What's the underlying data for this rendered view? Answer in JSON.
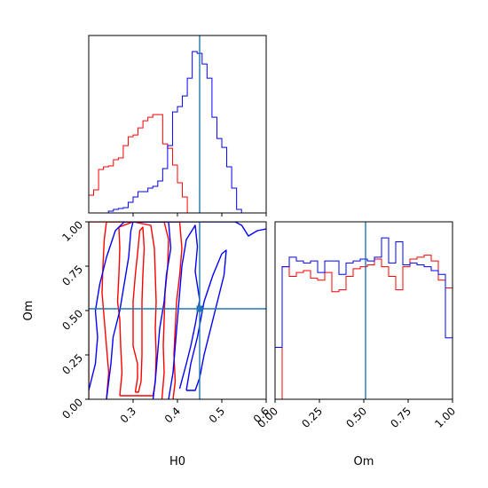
{
  "chart_data": [
    {
      "type": "histogram",
      "panel": "H0 marginal",
      "xlim": [
        0.2,
        0.6
      ],
      "x_ticks": [
        "0.3",
        "0.4",
        "0.5",
        "0.6"
      ],
      "truth_x": 0.45,
      "bin_edges": [
        0.2,
        0.2111,
        0.2222,
        0.2333,
        0.2444,
        0.2556,
        0.2667,
        0.2778,
        0.2889,
        0.3,
        0.3111,
        0.3222,
        0.3333,
        0.3444,
        0.3556,
        0.3667,
        0.3778,
        0.3889,
        0.4,
        0.4111,
        0.4222,
        0.4333,
        0.4444,
        0.4556,
        0.4667,
        0.4778,
        0.4889,
        0.5,
        0.5111,
        0.5222,
        0.5333,
        0.5444,
        0.5556,
        0.5667,
        0.5778,
        0.5889,
        0.6
      ],
      "series": [
        {
          "color": "#ff0000",
          "values": [
            20,
            26,
            49,
            52,
            53,
            60,
            62,
            76,
            86,
            88,
            96,
            104,
            108,
            111,
            111,
            78,
            73,
            54,
            34,
            18,
            0,
            0,
            0,
            0,
            0,
            0,
            0,
            0,
            0,
            0,
            0,
            0,
            0,
            0,
            0,
            0
          ]
        },
        {
          "color": "#0000ff",
          "values": [
            0,
            0,
            0,
            0,
            2,
            4,
            5,
            6,
            12,
            18,
            24,
            24,
            28,
            30,
            36,
            50,
            76,
            114,
            120,
            132,
            152,
            182,
            180,
            168,
            152,
            108,
            84,
            74,
            52,
            28,
            4,
            0,
            0,
            0,
            0,
            0
          ]
        }
      ]
    },
    {
      "type": "contour",
      "panel": "H0 vs Om",
      "xlabel": "H0",
      "ylabel": "Om",
      "xlim": [
        0.2,
        0.6
      ],
      "ylim": [
        0.0,
        1.0
      ],
      "x_ticks": [
        "0.3",
        "0.4",
        "0.5",
        "0.6"
      ],
      "y_ticks": [
        "0.00",
        "0.25",
        "0.50",
        "0.75",
        "1.00"
      ],
      "truth": [
        0.45,
        0.51
      ],
      "series": [
        {
          "color": "#ff0000",
          "contours": [
            [
              [
                0.305,
                0.04
              ],
              [
                0.31,
                0.12
              ],
              [
                0.31,
                0.2
              ],
              [
                0.3,
                0.3
              ],
              [
                0.3,
                0.45
              ],
              [
                0.3,
                0.55
              ],
              [
                0.305,
                0.7
              ],
              [
                0.31,
                0.82
              ],
              [
                0.315,
                0.95
              ],
              [
                0.322,
                0.97
              ],
              [
                0.325,
                0.85
              ],
              [
                0.322,
                0.7
              ],
              [
                0.32,
                0.55
              ],
              [
                0.32,
                0.4
              ],
              [
                0.32,
                0.25
              ],
              [
                0.318,
                0.1
              ],
              [
                0.312,
                0.04
              ],
              [
                0.305,
                0.04
              ]
            ],
            [
              [
                0.27,
                0.02
              ],
              [
                0.275,
                0.15
              ],
              [
                0.272,
                0.3
              ],
              [
                0.27,
                0.45
              ],
              [
                0.265,
                0.55
              ],
              [
                0.268,
                0.7
              ],
              [
                0.27,
                0.85
              ],
              [
                0.268,
                0.97
              ],
              [
                0.3,
                1.0
              ],
              [
                0.34,
                0.98
              ],
              [
                0.348,
                0.85
              ],
              [
                0.35,
                0.7
              ],
              [
                0.352,
                0.55
              ],
              [
                0.35,
                0.4
              ],
              [
                0.352,
                0.25
              ],
              [
                0.35,
                0.1
              ],
              [
                0.345,
                0.02
              ],
              [
                0.27,
                0.02
              ]
            ],
            [
              [
                0.24,
                0.0
              ],
              [
                0.245,
                0.15
              ],
              [
                0.24,
                0.3
              ],
              [
                0.235,
                0.45
              ],
              [
                0.23,
                0.6
              ],
              [
                0.232,
                0.75
              ],
              [
                0.235,
                0.9
              ],
              [
                0.24,
                1.0
              ],
              [
                0.37,
                1.0
              ],
              [
                0.38,
                0.9
              ],
              [
                0.378,
                0.75
              ],
              [
                0.372,
                0.6
              ],
              [
                0.37,
                0.45
              ],
              [
                0.368,
                0.3
              ],
              [
                0.37,
                0.15
              ],
              [
                0.365,
                0.0
              ]
            ],
            [
              [
                0.2,
                0.0
              ],
              [
                0.2,
                1.0
              ],
              [
                0.405,
                1.0
              ],
              [
                0.41,
                0.85
              ],
              [
                0.405,
                0.7
              ],
              [
                0.398,
                0.55
              ],
              [
                0.395,
                0.4
              ],
              [
                0.392,
                0.25
              ],
              [
                0.395,
                0.1
              ],
              [
                0.39,
                0.0
              ]
            ]
          ]
        },
        {
          "color": "#0000ff",
          "contours": [
            [
              [
                0.42,
                0.05
              ],
              [
                0.43,
                0.2
              ],
              [
                0.445,
                0.35
              ],
              [
                0.46,
                0.55
              ],
              [
                0.48,
                0.7
              ],
              [
                0.5,
                0.82
              ],
              [
                0.51,
                0.84
              ],
              [
                0.505,
                0.7
              ],
              [
                0.49,
                0.55
              ],
              [
                0.475,
                0.4
              ],
              [
                0.46,
                0.25
              ],
              [
                0.45,
                0.12
              ],
              [
                0.44,
                0.05
              ],
              [
                0.42,
                0.05
              ]
            ],
            [
              [
                0.38,
                0.0
              ],
              [
                0.39,
                0.15
              ],
              [
                0.395,
                0.3
              ],
              [
                0.4,
                0.45
              ],
              [
                0.405,
                0.6
              ],
              [
                0.41,
                0.75
              ],
              [
                0.42,
                0.9
              ],
              [
                0.44,
                0.98
              ],
              [
                0.445,
                0.86
              ],
              [
                0.44,
                0.72
              ],
              [
                0.45,
                0.56
              ],
              [
                0.44,
                0.42
              ],
              [
                0.43,
                0.3
              ],
              [
                0.42,
                0.2
              ],
              [
                0.405,
                0.06
              ]
            ],
            [
              [
                0.24,
                0.0
              ],
              [
                0.25,
                0.2
              ],
              [
                0.255,
                0.35
              ],
              [
                0.27,
                0.5
              ],
              [
                0.28,
                0.65
              ],
              [
                0.29,
                0.8
              ],
              [
                0.295,
                0.95
              ],
              [
                0.3,
                1.0
              ],
              [
                0.38,
                1.0
              ],
              [
                0.385,
                0.85
              ],
              [
                0.375,
                0.7
              ],
              [
                0.37,
                0.55
              ],
              [
                0.36,
                0.4
              ],
              [
                0.355,
                0.25
              ],
              [
                0.35,
                0.1
              ],
              [
                0.345,
                0.0
              ]
            ],
            [
              [
                0.2,
                0.05
              ],
              [
                0.215,
                0.2
              ],
              [
                0.22,
                0.35
              ],
              [
                0.215,
                0.5
              ],
              [
                0.225,
                0.65
              ],
              [
                0.24,
                0.8
              ],
              [
                0.26,
                0.95
              ],
              [
                0.28,
                1.0
              ],
              [
                0.53,
                1.0
              ],
              [
                0.545,
                0.98
              ],
              [
                0.56,
                0.92
              ],
              [
                0.58,
                0.95
              ],
              [
                0.6,
                0.96
              ]
            ]
          ]
        }
      ]
    },
    {
      "type": "histogram",
      "panel": "Om marginal",
      "xlabel": "Om",
      "xlim": [
        0.0,
        1.0
      ],
      "x_ticks": [
        "0.00",
        "0.25",
        "0.50",
        "0.75",
        "1.00"
      ],
      "truth_x": 0.51,
      "bin_edges": [
        0.0,
        0.04,
        0.08,
        0.12,
        0.16,
        0.2,
        0.24,
        0.28,
        0.32,
        0.36,
        0.4,
        0.44,
        0.48,
        0.52,
        0.56,
        0.6,
        0.64,
        0.68,
        0.72,
        0.76,
        0.8,
        0.84,
        0.88,
        0.92,
        0.96,
        1.0
      ],
      "series": [
        {
          "color": "#ff0000",
          "values": [
            0,
            138,
            128,
            132,
            134,
            126,
            124,
            132,
            112,
            114,
            128,
            136,
            138,
            140,
            146,
            138,
            128,
            114,
            138,
            146,
            148,
            150,
            144,
            124,
            116
          ]
        },
        {
          "color": "#0000ff",
          "values": [
            54,
            138,
            148,
            144,
            142,
            144,
            132,
            144,
            144,
            130,
            142,
            144,
            146,
            144,
            148,
            168,
            142,
            164,
            140,
            142,
            140,
            138,
            134,
            130,
            64
          ]
        }
      ]
    }
  ]
}
